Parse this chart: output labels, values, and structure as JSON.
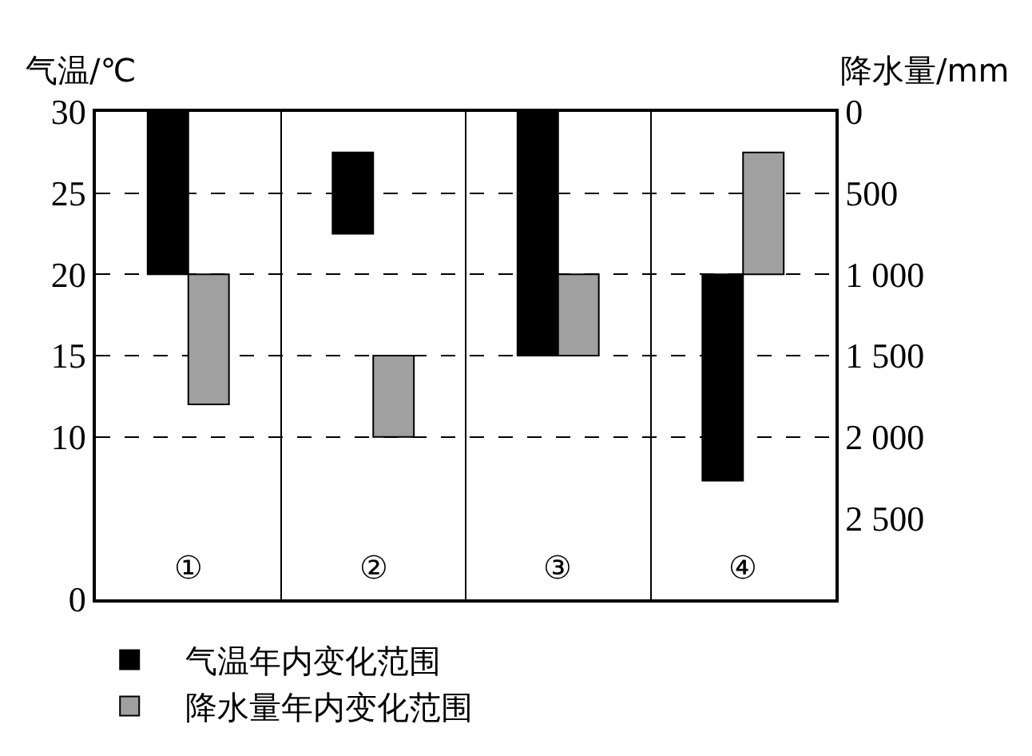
{
  "chart_data": {
    "type": "bar",
    "ylabel": "气温/℃",
    "y2label": "降水量/mm",
    "categories": [
      "①",
      "②",
      "③",
      "④"
    ],
    "series": [
      {
        "name": "气温年内变化范围",
        "color": "#000000",
        "base": [
          20,
          22.5,
          15,
          7.3
        ],
        "values": [
          10,
          5,
          15,
          12.7
        ]
      },
      {
        "name": "降水量年内变化范围",
        "color": "#a0a0a0",
        "axis": "y2",
        "base": [
          1000,
          1500,
          1000,
          250
        ],
        "values": [
          800,
          500,
          500,
          750
        ]
      }
    ],
    "ylim": [
      0,
      30
    ],
    "yticks": [
      0,
      10,
      15,
      20,
      25,
      30
    ],
    "y2lim": [
      3000,
      0
    ],
    "y2ticks": [
      0,
      500,
      {
        "value": 1000,
        "label": "1 000"
      },
      {
        "value": 1500,
        "label": "1 500"
      },
      {
        "value": 2000,
        "label": "2 000"
      },
      {
        "value": 2500,
        "label": "2 500"
      }
    ],
    "grid": true,
    "legend": "bottom left"
  }
}
